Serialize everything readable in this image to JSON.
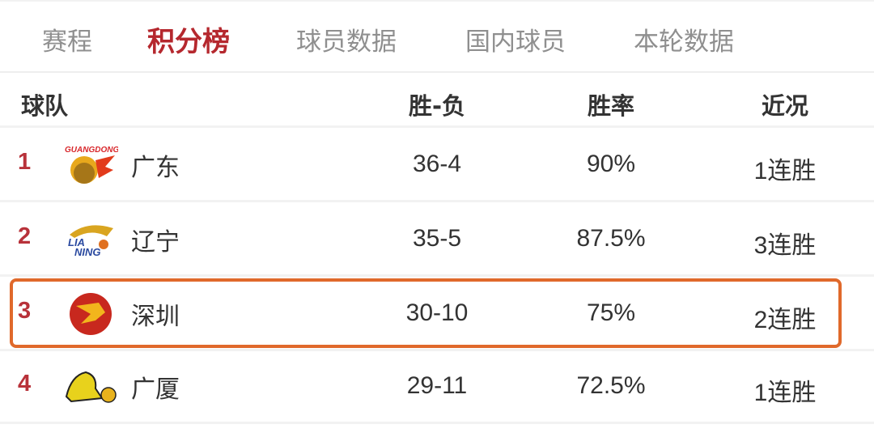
{
  "tabs": [
    {
      "label": "赛程",
      "active": false
    },
    {
      "label": "积分榜",
      "active": true
    },
    {
      "label": "球员数据",
      "active": false
    },
    {
      "label": "国内球员",
      "active": false
    },
    {
      "label": "本轮数据",
      "active": false
    }
  ],
  "colors": {
    "active_tab": "#b5282e",
    "rank": "#b8323a",
    "highlight": "#e0692b"
  },
  "table": {
    "headers": {
      "team": "球队",
      "record": "胜-负",
      "pct": "胜率",
      "streak": "近况"
    },
    "rows": [
      {
        "rank": "1",
        "team": "广东",
        "logo": "guangdong-tiger-logo",
        "logo_text": "GUANGDONG",
        "record": "36-4",
        "pct": "90%",
        "streak": "1连胜"
      },
      {
        "rank": "2",
        "team": "辽宁",
        "logo": "liaoning-leopard-logo",
        "logo_text": "LIAONING",
        "record": "35-5",
        "pct": "87.5%",
        "streak": "3连胜"
      },
      {
        "rank": "3",
        "team": "深圳",
        "logo": "shenzhen-lion-logo",
        "record": "30-10",
        "pct": "75%",
        "streak": "2连胜",
        "highlighted": true
      },
      {
        "rank": "4",
        "team": "广厦",
        "logo": "guangsha-lion-logo",
        "record": "29-11",
        "pct": "72.5%",
        "streak": "1连胜"
      }
    ]
  }
}
